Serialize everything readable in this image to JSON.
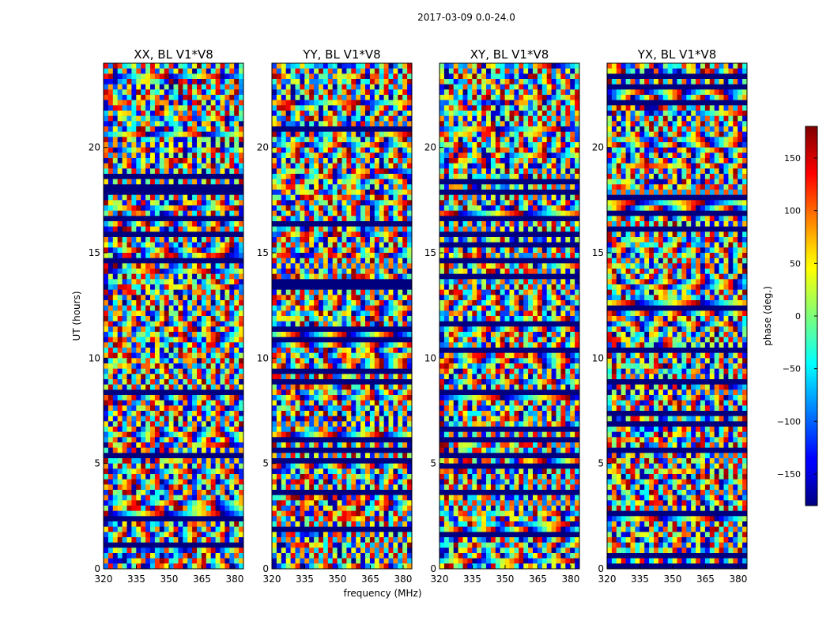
{
  "suptitle": "2017-03-09 0.0-24.0",
  "colors": {
    "frame": "#000000",
    "background": "#ffffff"
  },
  "chart_data": {
    "type": "heatmap",
    "panels": [
      {
        "title": "XX, BL V1*V8",
        "pol": "XX"
      },
      {
        "title": "YY, BL V1*V8",
        "pol": "YY"
      },
      {
        "title": "XY, BL V1*V8",
        "pol": "XY"
      },
      {
        "title": "YX, BL V1*V8",
        "pol": "YX"
      }
    ],
    "xlabel": "frequency (MHz)",
    "ylabel": "UT (hours)",
    "xlim": [
      320,
      384
    ],
    "ylim": [
      0,
      24
    ],
    "x_tick_values": [
      320,
      335,
      350,
      365,
      380
    ],
    "x_tick_labels": [
      "320",
      "335",
      "350",
      "365",
      "380"
    ],
    "y_tick_values": [
      0,
      5,
      10,
      15,
      20
    ],
    "y_tick_labels": [
      "0",
      "5",
      "10",
      "15",
      "20"
    ],
    "colorbar": {
      "label": "phase (deg.)",
      "colormap": "jet",
      "vmin": -180,
      "vmax": 180,
      "tick_values": [
        150,
        100,
        50,
        0,
        -50,
        -100,
        -150
      ],
      "tick_labels": [
        "150",
        "100",
        "50",
        "0",
        "−50",
        "−100",
        "−150"
      ]
    }
  }
}
